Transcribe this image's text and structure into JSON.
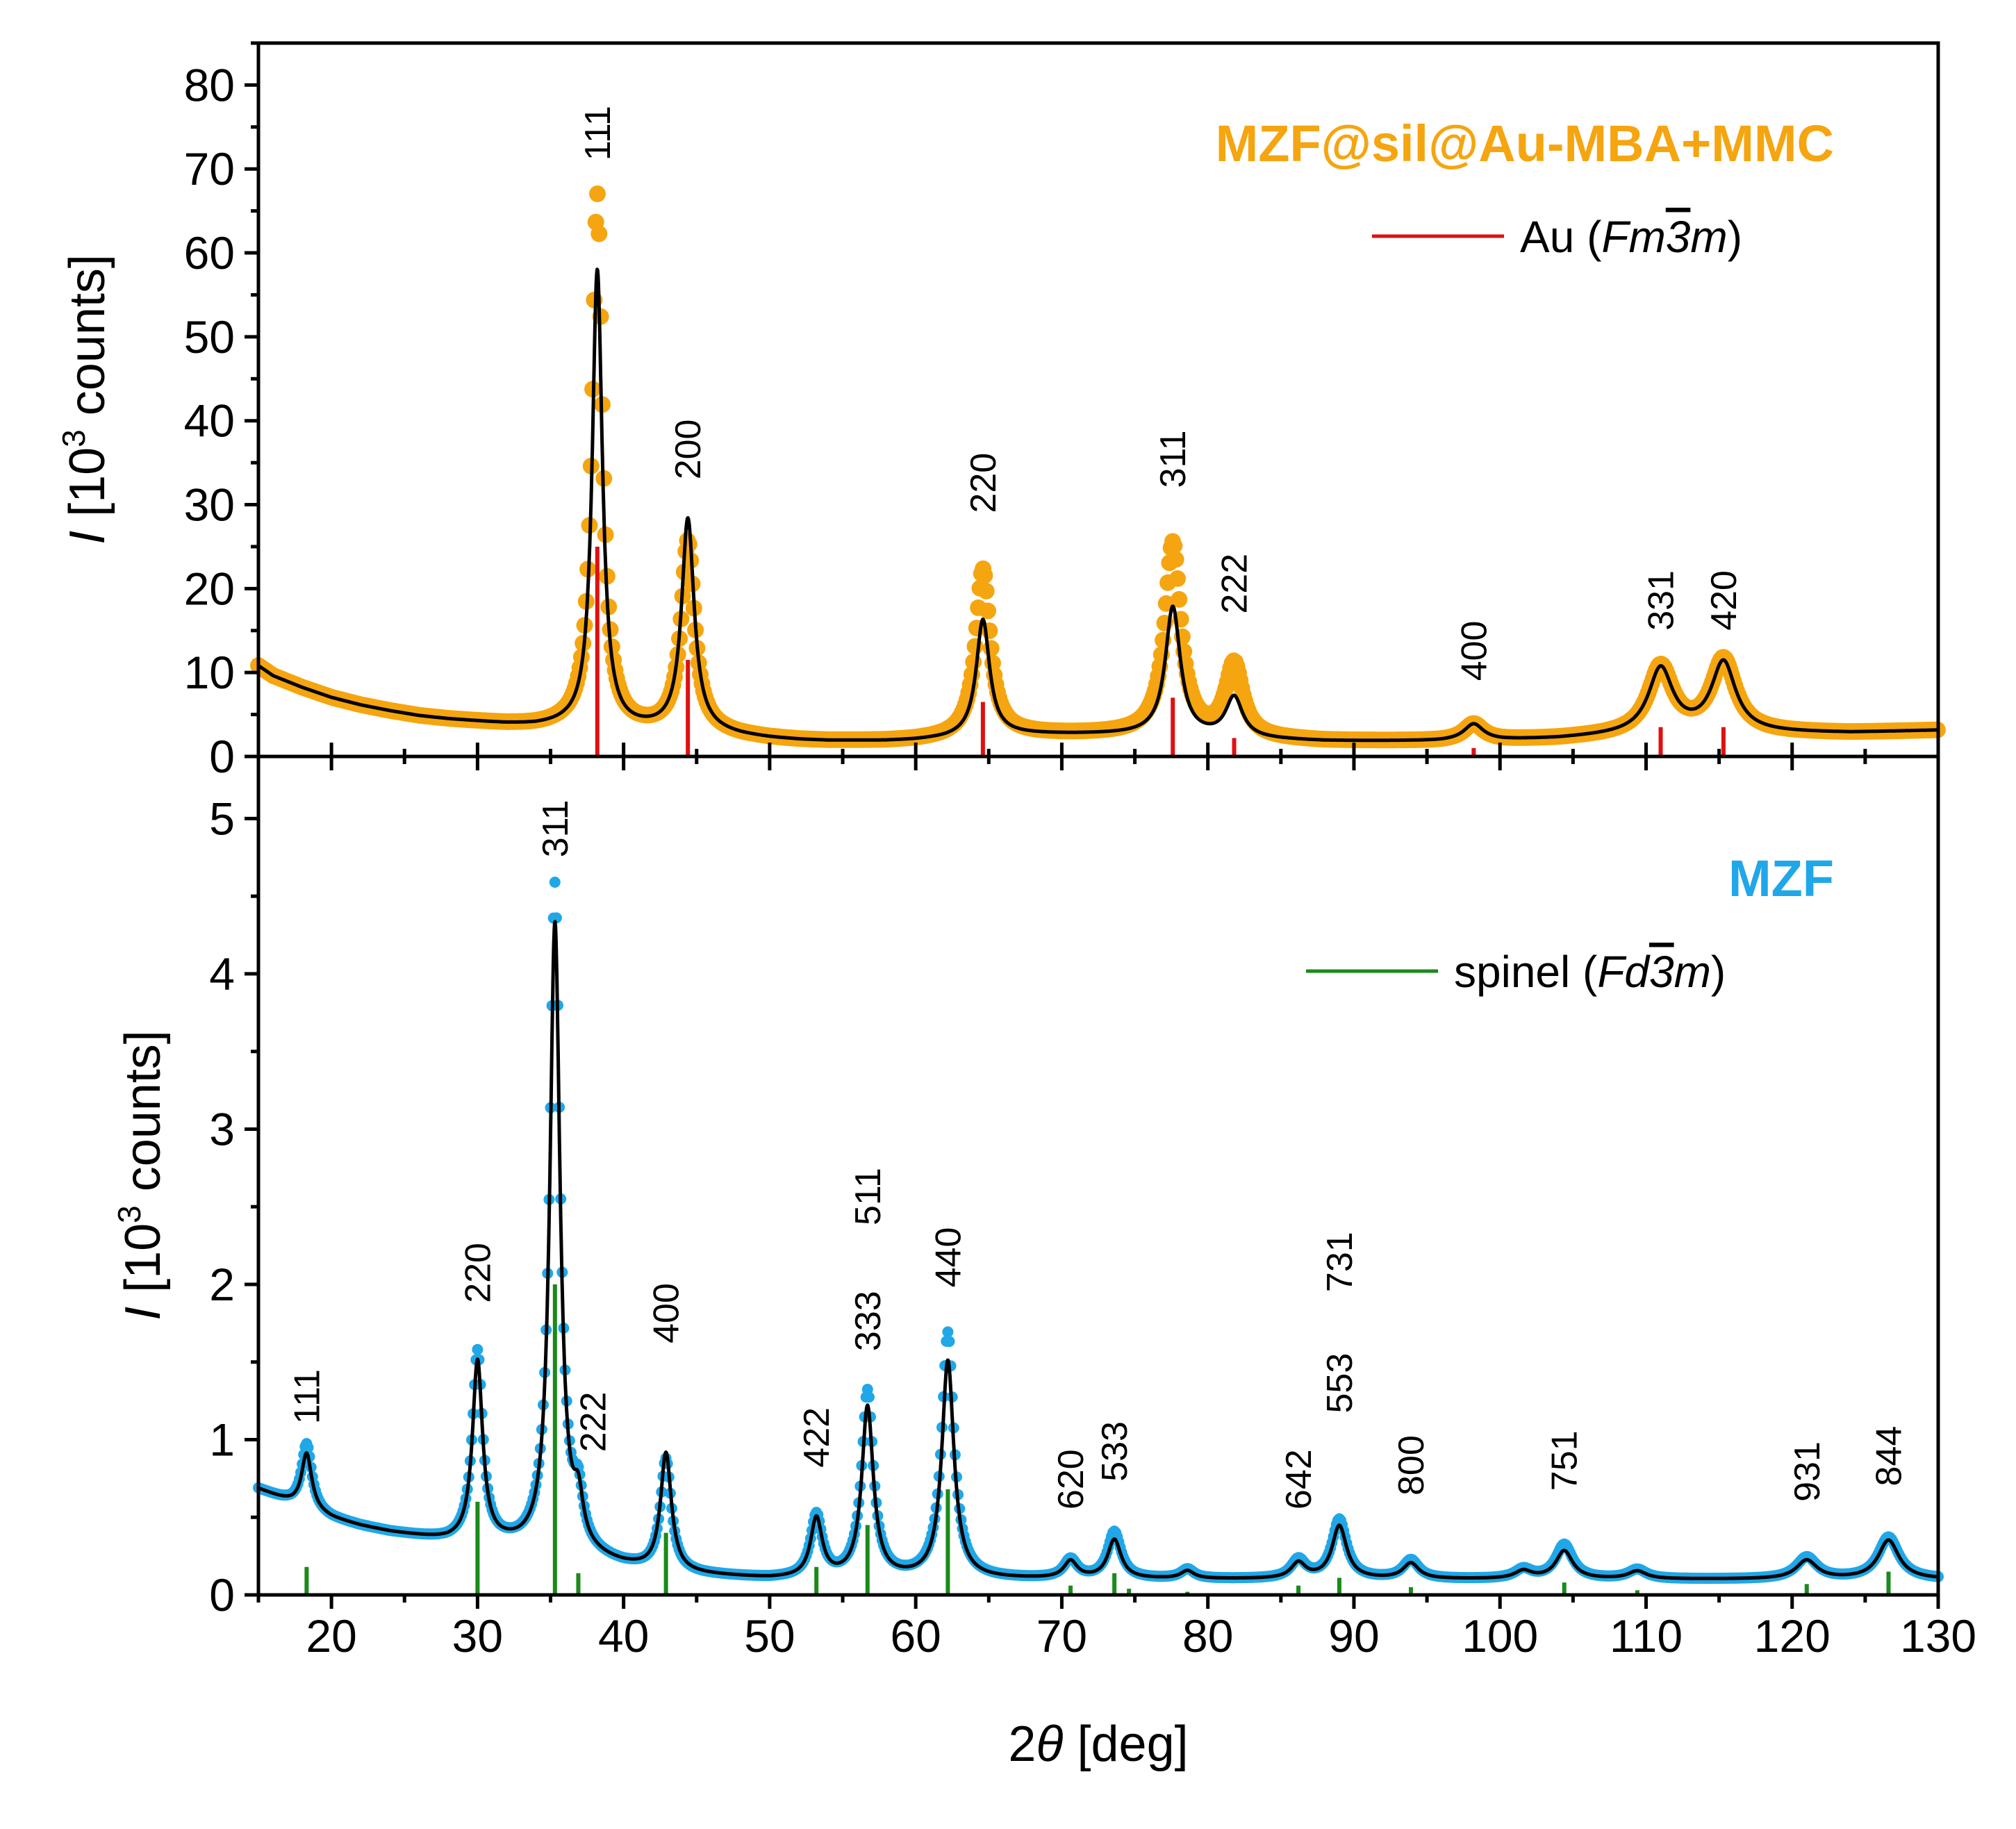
{
  "chart_data": [
    {
      "type": "line",
      "panel": "top",
      "title": "",
      "sample_label": "MZF@sil@Au-MBA+MMC",
      "ylabel": "I [10³ counts]",
      "ylabel_italic": "I",
      "ylabel_rest": " [10",
      "ylabel_sup": "3",
      "ylabel_end": " counts]",
      "ylim": [
        0,
        85
      ],
      "xlim": [
        15,
        130
      ],
      "yticks": [
        0,
        10,
        20,
        30,
        40,
        50,
        60,
        70,
        80
      ],
      "ytick_labels": [
        "0",
        "10",
        "20",
        "30",
        "40",
        "50",
        "60",
        "70",
        "80"
      ],
      "legend": {
        "placement": "top-right",
        "prefix": "Au (",
        "sg_a": "Fm",
        "sg_b": "3",
        "sg_c": "m",
        "suffix": ")"
      },
      "baseline": [
        [
          15,
          10.8
        ],
        [
          16,
          9.6
        ],
        [
          18,
          8.2
        ],
        [
          20,
          7.0
        ],
        [
          22,
          6.1
        ],
        [
          24,
          5.4
        ],
        [
          26,
          4.8
        ],
        [
          28,
          4.4
        ],
        [
          30,
          4.1
        ],
        [
          32,
          3.8
        ],
        [
          34,
          3.6
        ],
        [
          36,
          3.6
        ],
        [
          38,
          3.4
        ],
        [
          40,
          3.2
        ],
        [
          42,
          3.1
        ],
        [
          44,
          3.0
        ],
        [
          46,
          2.8
        ],
        [
          48,
          2.4
        ],
        [
          50,
          2.1
        ],
        [
          52,
          1.9
        ],
        [
          54,
          1.8
        ],
        [
          56,
          1.8
        ],
        [
          58,
          1.8
        ],
        [
          60,
          1.9
        ],
        [
          62,
          2.1
        ],
        [
          64,
          2.4
        ],
        [
          66,
          2.6
        ],
        [
          68,
          2.6
        ],
        [
          70,
          2.6
        ],
        [
          72,
          2.6
        ],
        [
          74,
          2.6
        ],
        [
          76,
          2.6
        ],
        [
          78,
          2.5
        ],
        [
          80,
          2.3
        ],
        [
          82,
          2.1
        ],
        [
          84,
          2.0
        ],
        [
          86,
          1.9
        ],
        [
          88,
          1.8
        ],
        [
          90,
          1.8
        ],
        [
          92,
          1.8
        ],
        [
          94,
          1.8
        ],
        [
          96,
          1.8
        ],
        [
          98,
          1.9
        ],
        [
          100,
          1.9
        ],
        [
          102,
          2.0
        ],
        [
          104,
          2.1
        ],
        [
          106,
          2.3
        ],
        [
          108,
          2.5
        ],
        [
          110,
          2.7
        ],
        [
          112,
          2.8
        ],
        [
          114,
          2.8
        ],
        [
          116,
          2.8
        ],
        [
          118,
          2.8
        ],
        [
          120,
          2.8
        ],
        [
          122,
          2.8
        ],
        [
          124,
          2.8
        ],
        [
          126,
          2.9
        ],
        [
          128,
          3.0
        ],
        [
          130,
          3.1
        ]
      ],
      "fit_peaks": [
        {
          "x": 38.2,
          "h": 54.5,
          "w": 0.42
        },
        {
          "x": 44.4,
          "h": 25.2,
          "w": 0.52
        },
        {
          "x": 64.6,
          "h": 13.8,
          "w": 0.55
        },
        {
          "x": 77.6,
          "h": 15.2,
          "w": 0.62
        },
        {
          "x": 81.8,
          "h": 4.8,
          "w": 0.7
        },
        {
          "x": 98.2,
          "h": 1.9,
          "w": 0.8
        },
        {
          "x": 111.0,
          "h": 7.6,
          "w": 1.0
        },
        {
          "x": 115.3,
          "h": 8.3,
          "w": 1.0
        }
      ],
      "data_peaks": [
        {
          "x": 38.2,
          "h": 63.5,
          "w": 0.42
        },
        {
          "x": 44.4,
          "h": 22.5,
          "w": 0.55
        },
        {
          "x": 64.6,
          "h": 19.8,
          "w": 0.58
        },
        {
          "x": 77.6,
          "h": 22.8,
          "w": 0.65
        },
        {
          "x": 81.8,
          "h": 8.7,
          "w": 0.7
        },
        {
          "x": 98.2,
          "h": 1.9,
          "w": 0.8
        },
        {
          "x": 111.0,
          "h": 7.8,
          "w": 1.0
        },
        {
          "x": 115.3,
          "h": 8.6,
          "w": 1.0
        }
      ],
      "reference_lines": [
        {
          "x": 38.2,
          "h": 25.0
        },
        {
          "x": 44.4,
          "h": 11.5
        },
        {
          "x": 64.6,
          "h": 6.5
        },
        {
          "x": 77.6,
          "h": 7.0
        },
        {
          "x": 81.8,
          "h": 2.2
        },
        {
          "x": 98.2,
          "h": 1.0
        },
        {
          "x": 111.0,
          "h": 3.5
        },
        {
          "x": 115.3,
          "h": 3.5
        }
      ],
      "peak_labels": [
        {
          "text": "111",
          "x": 38.2,
          "y": 71
        },
        {
          "text": "200",
          "x": 44.4,
          "y": 33
        },
        {
          "text": "220",
          "x": 64.6,
          "y": 29
        },
        {
          "text": "311",
          "x": 77.6,
          "y": 32
        },
        {
          "text": "222",
          "x": 81.8,
          "y": 17
        },
        {
          "text": "400",
          "x": 98.2,
          "y": 9
        },
        {
          "text": "331",
          "x": 111.0,
          "y": 15
        },
        {
          "text": "420",
          "x": 115.3,
          "y": 15
        }
      ],
      "series": [
        {
          "name": "data",
          "color": "#f5a50f"
        },
        {
          "name": "fit",
          "color": "#000000"
        },
        {
          "name": "Au reference",
          "color": "#e01010"
        }
      ]
    },
    {
      "type": "line",
      "panel": "bottom",
      "title": "",
      "sample_label": "MZF",
      "xlabel": "2θ [deg]",
      "xlabel_pre": "2",
      "xlabel_theta": "θ",
      "xlabel_post": " [deg]",
      "ylabel": "I [10³ counts]",
      "ylabel_italic": "I",
      "ylabel_rest": " [10",
      "ylabel_sup": "3",
      "ylabel_end": " counts]",
      "ylim": [
        0,
        5.4
      ],
      "xlim": [
        15,
        130
      ],
      "yticks": [
        0,
        1,
        2,
        3,
        4,
        5
      ],
      "ytick_labels": [
        "0",
        "1",
        "2",
        "3",
        "4",
        "5"
      ],
      "xticks": [
        20,
        30,
        40,
        50,
        60,
        70,
        80,
        90,
        100,
        110,
        120,
        130
      ],
      "xtick_labels": [
        "20",
        "30",
        "40",
        "50",
        "60",
        "70",
        "80",
        "90",
        "100",
        "110",
        "120",
        "130"
      ],
      "legend": {
        "placement": "top-right",
        "prefix": "spinel (",
        "sg_a": "Fd",
        "sg_b": "3",
        "sg_c": "m",
        "suffix": ")"
      },
      "baseline": [
        [
          15,
          0.68
        ],
        [
          16,
          0.64
        ],
        [
          18,
          0.56
        ],
        [
          20,
          0.49
        ],
        [
          22,
          0.44
        ],
        [
          24,
          0.4
        ],
        [
          26,
          0.37
        ],
        [
          28,
          0.34
        ],
        [
          30,
          0.33
        ],
        [
          32,
          0.31
        ],
        [
          34,
          0.28
        ],
        [
          36,
          0.25
        ],
        [
          38,
          0.22
        ],
        [
          40,
          0.18
        ],
        [
          42,
          0.15
        ],
        [
          44,
          0.13
        ],
        [
          46,
          0.12
        ],
        [
          48,
          0.11
        ],
        [
          50,
          0.1
        ],
        [
          52,
          0.1
        ],
        [
          54,
          0.1
        ],
        [
          56,
          0.1
        ],
        [
          60,
          0.1
        ],
        [
          70,
          0.1
        ],
        [
          80,
          0.1
        ],
        [
          90,
          0.1
        ],
        [
          100,
          0.1
        ],
        [
          110,
          0.1
        ],
        [
          120,
          0.1
        ],
        [
          130,
          0.1
        ]
      ],
      "fit_peaks": [
        {
          "x": 18.3,
          "h": 0.36,
          "w": 0.42
        },
        {
          "x": 30.0,
          "h": 1.16,
          "w": 0.42
        },
        {
          "x": 35.3,
          "h": 4.05,
          "w": 0.42
        },
        {
          "x": 36.9,
          "h": 0.28,
          "w": 0.4
        },
        {
          "x": 42.9,
          "h": 0.76,
          "w": 0.45
        },
        {
          "x": 53.2,
          "h": 0.38,
          "w": 0.48
        },
        {
          "x": 56.7,
          "h": 1.1,
          "w": 0.48
        },
        {
          "x": 62.2,
          "h": 1.4,
          "w": 0.5
        },
        {
          "x": 70.6,
          "h": 0.11,
          "w": 0.55
        },
        {
          "x": 73.6,
          "h": 0.25,
          "w": 0.55
        },
        {
          "x": 78.6,
          "h": 0.05,
          "w": 0.55
        },
        {
          "x": 86.2,
          "h": 0.1,
          "w": 0.6
        },
        {
          "x": 89.0,
          "h": 0.34,
          "w": 0.6
        },
        {
          "x": 93.9,
          "h": 0.1,
          "w": 0.65
        },
        {
          "x": 101.6,
          "h": 0.05,
          "w": 0.7
        },
        {
          "x": 104.4,
          "h": 0.18,
          "w": 0.7
        },
        {
          "x": 109.4,
          "h": 0.05,
          "w": 0.75
        },
        {
          "x": 121.0,
          "h": 0.12,
          "w": 0.85
        },
        {
          "x": 126.6,
          "h": 0.25,
          "w": 0.85
        }
      ],
      "data_peaks": [
        {
          "x": 18.3,
          "h": 0.42,
          "w": 0.42
        },
        {
          "x": 30.0,
          "h": 1.22,
          "w": 0.42
        },
        {
          "x": 35.3,
          "h": 4.3,
          "w": 0.42
        },
        {
          "x": 36.9,
          "h": 0.3,
          "w": 0.4
        },
        {
          "x": 42.9,
          "h": 0.72,
          "w": 0.45
        },
        {
          "x": 53.2,
          "h": 0.4,
          "w": 0.48
        },
        {
          "x": 56.7,
          "h": 1.2,
          "w": 0.48
        },
        {
          "x": 62.2,
          "h": 1.58,
          "w": 0.5
        },
        {
          "x": 70.6,
          "h": 0.12,
          "w": 0.55
        },
        {
          "x": 73.6,
          "h": 0.3,
          "w": 0.55
        },
        {
          "x": 78.6,
          "h": 0.06,
          "w": 0.55
        },
        {
          "x": 86.2,
          "h": 0.12,
          "w": 0.6
        },
        {
          "x": 89.0,
          "h": 0.38,
          "w": 0.6
        },
        {
          "x": 93.9,
          "h": 0.12,
          "w": 0.65
        },
        {
          "x": 101.6,
          "h": 0.06,
          "w": 0.7
        },
        {
          "x": 104.4,
          "h": 0.22,
          "w": 0.7
        },
        {
          "x": 109.4,
          "h": 0.06,
          "w": 0.75
        },
        {
          "x": 121.0,
          "h": 0.14,
          "w": 0.85
        },
        {
          "x": 126.6,
          "h": 0.27,
          "w": 0.85
        }
      ],
      "reference_lines": [
        {
          "x": 18.3,
          "h": 0.18
        },
        {
          "x": 30.0,
          "h": 0.6
        },
        {
          "x": 35.3,
          "h": 2.0
        },
        {
          "x": 36.9,
          "h": 0.14
        },
        {
          "x": 42.9,
          "h": 0.4
        },
        {
          "x": 53.2,
          "h": 0.18
        },
        {
          "x": 56.7,
          "h": 0.45
        },
        {
          "x": 62.2,
          "h": 0.68
        },
        {
          "x": 70.6,
          "h": 0.06
        },
        {
          "x": 73.6,
          "h": 0.14
        },
        {
          "x": 74.6,
          "h": 0.04
        },
        {
          "x": 78.6,
          "h": 0.02
        },
        {
          "x": 86.2,
          "h": 0.06
        },
        {
          "x": 89.0,
          "h": 0.11
        },
        {
          "x": 93.9,
          "h": 0.05
        },
        {
          "x": 104.4,
          "h": 0.08
        },
        {
          "x": 109.4,
          "h": 0.03
        },
        {
          "x": 121.0,
          "h": 0.07
        },
        {
          "x": 126.6,
          "h": 0.15
        }
      ],
      "peak_labels": [
        {
          "text": "111",
          "x": 18.3,
          "y": 1.1
        },
        {
          "text": "220",
          "x": 30.0,
          "y": 1.88
        },
        {
          "text": "311",
          "x": 35.3,
          "y": 4.75
        },
        {
          "text": "222",
          "x": 37.9,
          "y": 0.92
        },
        {
          "text": "400",
          "x": 42.9,
          "y": 1.62
        },
        {
          "text": "422",
          "x": 53.2,
          "y": 0.82
        },
        {
          "text": "333",
          "x": 56.7,
          "y": 1.57
        },
        {
          "text": "511",
          "x": 56.7,
          "y": 2.38
        },
        {
          "text": "440",
          "x": 62.2,
          "y": 1.98
        },
        {
          "text": "620",
          "x": 70.6,
          "y": 0.55
        },
        {
          "text": "533",
          "x": 73.6,
          "y": 0.73
        },
        {
          "text": "642",
          "x": 86.2,
          "y": 0.55
        },
        {
          "text": "553",
          "x": 89.0,
          "y": 1.17
        },
        {
          "text": "731",
          "x": 89.0,
          "y": 1.95
        },
        {
          "text": "800",
          "x": 93.9,
          "y": 0.64
        },
        {
          "text": "751",
          "x": 104.4,
          "y": 0.67
        },
        {
          "text": "931",
          "x": 121.0,
          "y": 0.6
        },
        {
          "text": "844",
          "x": 126.6,
          "y": 0.7
        }
      ],
      "series": [
        {
          "name": "data",
          "color": "#20a7e8"
        },
        {
          "name": "fit",
          "color": "#000000"
        },
        {
          "name": "spinel reference",
          "color": "#1a8a1a"
        }
      ]
    }
  ]
}
